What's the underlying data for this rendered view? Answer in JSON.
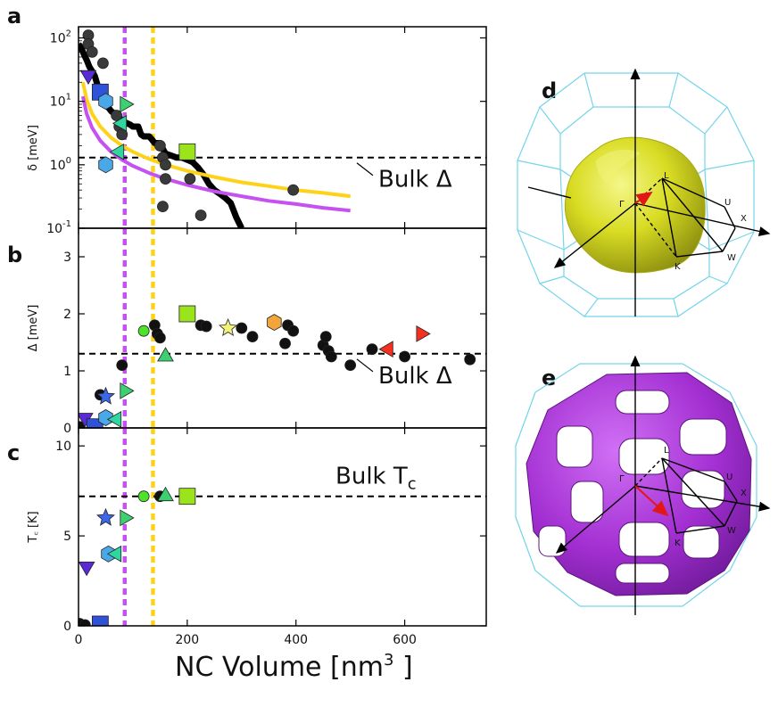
{
  "chart_data": [
    {
      "panel": "a",
      "type": "scatter",
      "xlabel": "",
      "ylabel": "δ [meV]",
      "yscale": "log",
      "xlim": [
        0,
        750
      ],
      "ylim": [
        0.1,
        150
      ],
      "yticks": [
        {
          "v": 0.1,
          "base": "10",
          "exp": "-1"
        },
        {
          "v": 1,
          "base": "10",
          "exp": "0"
        },
        {
          "v": 10,
          "base": "10",
          "exp": "1"
        },
        {
          "v": 100,
          "base": "10",
          "exp": "2"
        }
      ],
      "reference_lines": [
        {
          "name": "bulk-delta",
          "y": 1.3,
          "color": "#000000",
          "dash": "dashed"
        },
        {
          "name": "vline-purple",
          "x": 85,
          "color": "#c651f1",
          "dash": "dotted"
        },
        {
          "name": "vline-yellow",
          "x": 137,
          "color": "#ffd21a",
          "dash": "dotted"
        }
      ],
      "annotation": {
        "text": "Bulk Δ",
        "at_y": 1.3
      },
      "curves": [
        {
          "name": "black-step",
          "color": "#000000",
          "x": [
            0,
            5,
            10,
            15,
            20,
            25,
            30,
            35,
            40,
            45,
            50,
            55,
            60,
            65,
            70,
            75,
            80,
            85,
            90,
            95,
            100,
            110,
            115,
            120,
            130,
            135,
            140,
            150,
            155,
            160,
            170,
            180,
            190,
            200,
            210,
            220,
            230,
            240,
            250,
            260,
            270,
            280,
            290,
            300
          ],
          "y": [
            80,
            70,
            55,
            45,
            35,
            30,
            25,
            18,
            15,
            12,
            9,
            8,
            7,
            6.5,
            6,
            5.5,
            5,
            4.7,
            4.5,
            4.3,
            4,
            4,
            3,
            2.8,
            2.8,
            2.5,
            2.2,
            2.2,
            1.8,
            1.5,
            1.4,
            1.3,
            1.3,
            1.2,
            1.1,
            0.9,
            0.7,
            0.5,
            0.4,
            0.35,
            0.3,
            0.25,
            0.15,
            0.1
          ]
        },
        {
          "name": "yellow-curve",
          "color": "#ffd21a",
          "x": [
            8,
            15,
            25,
            40,
            60,
            80,
            100,
            130,
            160,
            200,
            250,
            300,
            350,
            400,
            450,
            500
          ],
          "y": [
            20,
            10.7,
            6.4,
            4,
            2.67,
            2,
            1.6,
            1.23,
            1,
            0.8,
            0.64,
            0.53,
            0.46,
            0.4,
            0.36,
            0.32
          ]
        },
        {
          "name": "purple-curve",
          "color": "#c651f1",
          "x": [
            8,
            15,
            25,
            40,
            60,
            80,
            100,
            130,
            160,
            200,
            250,
            300,
            350,
            400,
            450,
            500
          ],
          "y": [
            12,
            6.4,
            3.84,
            2.4,
            1.6,
            1.2,
            0.96,
            0.74,
            0.6,
            0.48,
            0.38,
            0.32,
            0.27,
            0.24,
            0.21,
            0.19
          ]
        }
      ],
      "points": [
        {
          "x": 18,
          "y": 110,
          "marker": "circle",
          "color": "#3a3a3a"
        },
        {
          "x": 18,
          "y": 80,
          "marker": "circle",
          "color": "#3a3a3a"
        },
        {
          "x": 25,
          "y": 60,
          "marker": "circle",
          "color": "#3a3a3a"
        },
        {
          "x": 45,
          "y": 40,
          "marker": "circle",
          "color": "#3a3a3a"
        },
        {
          "x": 70,
          "y": 6,
          "marker": "circle",
          "color": "#3a3a3a"
        },
        {
          "x": 75,
          "y": 4,
          "marker": "circle",
          "color": "#3a3a3a"
        },
        {
          "x": 80,
          "y": 3,
          "marker": "circle",
          "color": "#3a3a3a"
        },
        {
          "x": 150,
          "y": 2,
          "marker": "circle",
          "color": "#3a3a3a"
        },
        {
          "x": 155,
          "y": 1.3,
          "marker": "circle",
          "color": "#3a3a3a"
        },
        {
          "x": 160,
          "y": 1,
          "marker": "circle",
          "color": "#3a3a3a"
        },
        {
          "x": 160,
          "y": 0.6,
          "marker": "circle",
          "color": "#3a3a3a"
        },
        {
          "x": 155,
          "y": 0.22,
          "marker": "circle",
          "color": "#3a3a3a"
        },
        {
          "x": 205,
          "y": 0.6,
          "marker": "circle",
          "color": "#3a3a3a"
        },
        {
          "x": 225,
          "y": 0.16,
          "marker": "circle",
          "color": "#3a3a3a"
        },
        {
          "x": 395,
          "y": 0.4,
          "marker": "circle",
          "color": "#3a3a3a"
        },
        {
          "x": 18,
          "y": 26,
          "marker": "triangle-down",
          "color": "#5a2ad8"
        },
        {
          "x": 40,
          "y": 14,
          "marker": "square",
          "color": "#2e52d8"
        },
        {
          "x": 50,
          "y": 10,
          "marker": "hexagon",
          "color": "#4aa8e8"
        },
        {
          "x": 80,
          "y": 4.5,
          "marker": "triangle-left",
          "color": "#30d6a0"
        },
        {
          "x": 85,
          "y": 9,
          "marker": "triangle-right",
          "color": "#3cd070"
        },
        {
          "x": 50,
          "y": 1.0,
          "marker": "hexagon",
          "color": "#4aa8e8"
        },
        {
          "x": 75,
          "y": 1.6,
          "marker": "triangle-left",
          "color": "#30d6a0"
        },
        {
          "x": 200,
          "y": 1.6,
          "marker": "square",
          "color": "#9be31a"
        }
      ]
    },
    {
      "panel": "b",
      "type": "scatter",
      "xlabel": "",
      "ylabel": "Δ [meV]",
      "xlim": [
        0,
        750
      ],
      "ylim": [
        0,
        3.5
      ],
      "yticks": [
        "0",
        "1",
        "2",
        "3"
      ],
      "reference_lines": [
        {
          "name": "bulk-delta",
          "y": 1.3,
          "color": "#000000",
          "dash": "dashed"
        }
      ],
      "annotation": {
        "text": "Bulk Δ",
        "at_y": 1.3
      },
      "points": [
        {
          "x": 2,
          "y": 0.02,
          "marker": "circle",
          "color": "#111111"
        },
        {
          "x": 40,
          "y": 0.58,
          "marker": "circle",
          "color": "#111111"
        },
        {
          "x": 80,
          "y": 1.1,
          "marker": "circle",
          "color": "#111111"
        },
        {
          "x": 140,
          "y": 1.8,
          "marker": "circle",
          "color": "#111111"
        },
        {
          "x": 145,
          "y": 1.65,
          "marker": "circle",
          "color": "#111111"
        },
        {
          "x": 150,
          "y": 1.58,
          "marker": "circle",
          "color": "#111111"
        },
        {
          "x": 225,
          "y": 1.8,
          "marker": "circle",
          "color": "#111111"
        },
        {
          "x": 235,
          "y": 1.78,
          "marker": "circle",
          "color": "#111111"
        },
        {
          "x": 300,
          "y": 1.75,
          "marker": "circle",
          "color": "#111111"
        },
        {
          "x": 320,
          "y": 1.6,
          "marker": "circle",
          "color": "#111111"
        },
        {
          "x": 385,
          "y": 1.8,
          "marker": "circle",
          "color": "#111111"
        },
        {
          "x": 395,
          "y": 1.7,
          "marker": "circle",
          "color": "#111111"
        },
        {
          "x": 380,
          "y": 1.48,
          "marker": "circle",
          "color": "#111111"
        },
        {
          "x": 450,
          "y": 1.45,
          "marker": "circle",
          "color": "#111111"
        },
        {
          "x": 455,
          "y": 1.6,
          "marker": "circle",
          "color": "#111111"
        },
        {
          "x": 460,
          "y": 1.35,
          "marker": "circle",
          "color": "#111111"
        },
        {
          "x": 465,
          "y": 1.25,
          "marker": "circle",
          "color": "#111111"
        },
        {
          "x": 500,
          "y": 1.1,
          "marker": "circle",
          "color": "#111111"
        },
        {
          "x": 540,
          "y": 1.38,
          "marker": "circle",
          "color": "#111111"
        },
        {
          "x": 600,
          "y": 1.25,
          "marker": "circle",
          "color": "#111111"
        },
        {
          "x": 720,
          "y": 1.2,
          "marker": "circle",
          "color": "#111111"
        },
        {
          "x": 12,
          "y": 0.18,
          "marker": "triangle-down",
          "color": "#5a2ad8"
        },
        {
          "x": 30,
          "y": 0.02,
          "marker": "square",
          "color": "#2e52d8"
        },
        {
          "x": 50,
          "y": 0.55,
          "marker": "star",
          "color": "#3b67e8"
        },
        {
          "x": 50,
          "y": 0.18,
          "marker": "hexagon",
          "color": "#4aa8e8"
        },
        {
          "x": 70,
          "y": 0.15,
          "marker": "triangle-left",
          "color": "#30d6a0"
        },
        {
          "x": 85,
          "y": 0.65,
          "marker": "triangle-right",
          "color": "#3cd070"
        },
        {
          "x": 120,
          "y": 1.7,
          "marker": "circle",
          "color": "#4ee22a"
        },
        {
          "x": 160,
          "y": 1.25,
          "marker": "triangle-up",
          "color": "#3cd070"
        },
        {
          "x": 200,
          "y": 2.0,
          "marker": "square",
          "color": "#9be31a"
        },
        {
          "x": 275,
          "y": 1.75,
          "marker": "star",
          "color": "#f2f27a"
        },
        {
          "x": 360,
          "y": 1.85,
          "marker": "hexagon",
          "color": "#f2a53a"
        },
        {
          "x": 570,
          "y": 1.38,
          "marker": "triangle-left",
          "color": "#f53020"
        },
        {
          "x": 630,
          "y": 1.65,
          "marker": "triangle-right",
          "color": "#f53020"
        }
      ]
    },
    {
      "panel": "c",
      "type": "scatter",
      "xlabel": "NC Volume [nm³]",
      "ylabel": "T꜀ [K]",
      "xlim": [
        0,
        750
      ],
      "ylim": [
        0,
        11
      ],
      "yticks": [
        "0",
        "5",
        "10"
      ],
      "xticks": [
        "0",
        "200",
        "400",
        "600"
      ],
      "reference_lines": [
        {
          "name": "bulk-tc",
          "y": 7.2,
          "color": "#000000",
          "dash": "dashed"
        }
      ],
      "annotation": {
        "text": "Bulk T",
        "sub": "c",
        "at_y": 7.2
      },
      "points": [
        {
          "x": 2,
          "y": 0.12,
          "marker": "circle",
          "color": "#111111"
        },
        {
          "x": 12,
          "y": 0.05,
          "marker": "circle",
          "color": "#111111"
        },
        {
          "x": 150,
          "y": 7.2,
          "marker": "circle",
          "color": "#111111"
        },
        {
          "x": 15,
          "y": 3.3,
          "marker": "triangle-down",
          "color": "#5a2ad8"
        },
        {
          "x": 40,
          "y": 0.1,
          "marker": "square",
          "color": "#2e52d8"
        },
        {
          "x": 50,
          "y": 6.0,
          "marker": "star",
          "color": "#3b67e8"
        },
        {
          "x": 55,
          "y": 4.0,
          "marker": "hexagon",
          "color": "#4aa8e8"
        },
        {
          "x": 70,
          "y": 4.0,
          "marker": "triangle-left",
          "color": "#30d6a0"
        },
        {
          "x": 85,
          "y": 6.0,
          "marker": "triangle-right",
          "color": "#3cd070"
        },
        {
          "x": 120,
          "y": 7.2,
          "marker": "circle",
          "color": "#4ee22a"
        },
        {
          "x": 160,
          "y": 7.2,
          "marker": "triangle-up",
          "color": "#3cd070"
        },
        {
          "x": 200,
          "y": 7.2,
          "marker": "square",
          "color": "#9be31a"
        }
      ]
    }
  ],
  "bz_panels": [
    {
      "letter": "d",
      "surface_color": "#e3e630",
      "labels": {
        "gamma": "Γ",
        "L": "L",
        "U": "U",
        "X": "X",
        "W": "W",
        "K": "K"
      }
    },
    {
      "letter": "e",
      "surface_color": "#b63be0",
      "labels": {
        "gamma": "Γ",
        "L": "L",
        "U": "U",
        "X": "X",
        "W": "W",
        "K": "K"
      }
    }
  ],
  "xaxis": {
    "label_main": "NC Volume [nm",
    "label_sup": "3",
    "label_end": " ]"
  }
}
